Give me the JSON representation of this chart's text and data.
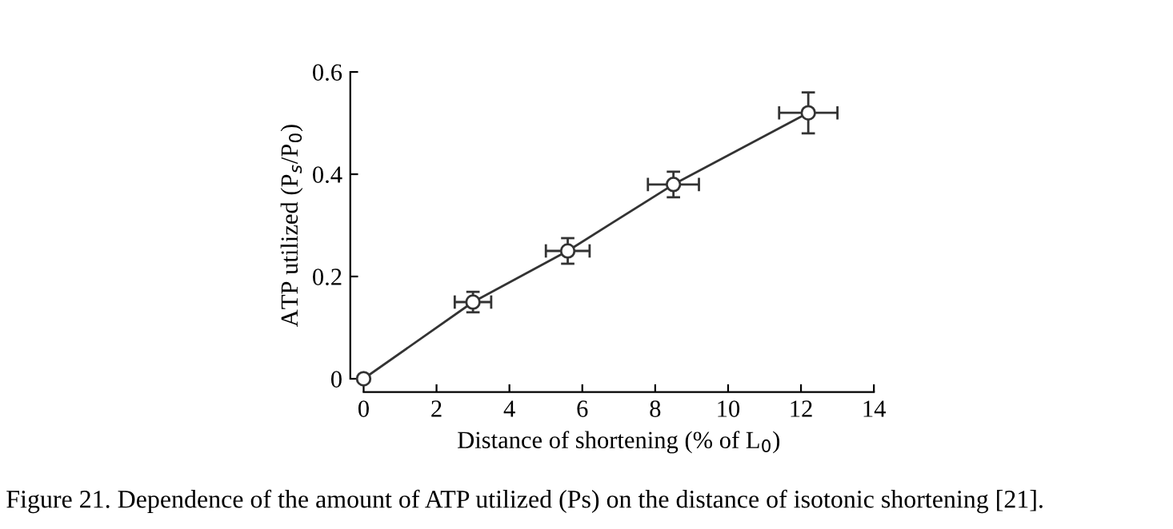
{
  "chart_data": {
    "type": "line",
    "xlabel": "Distance of shortening (% of L$_{0}$)",
    "ylabel": "ATP utilized (P$_{s}$/P$_{0}$)",
    "annotations": [
      "Figure 21. Dependence of the amount of ATP utilized (Ps) on the distance of isotonic shortening [21]."
    ],
    "series": [
      {
        "color": "#333333",
        "x": [
          0,
          3.0,
          5.6,
          8.5,
          12.2
        ],
        "values": [
          0,
          0.15,
          0.25,
          0.38,
          0.52
        ],
        "errors": [
          null,
          0.02,
          0.025,
          0.025,
          0.04
        ],
        "xerrors": [
          null,
          0.5,
          0.6,
          0.7,
          0.8
        ]
      }
    ],
    "marker": "circle",
    "line_style": "solid",
    "xlim": [
      0,
      14
    ],
    "ylim": [
      0,
      0.6
    ],
    "xticks": [
      0,
      2,
      4,
      6,
      8,
      10,
      12,
      14
    ],
    "yticks": [
      0,
      0.2,
      0.4,
      0.6
    ],
    "grid": false,
    "legend": false
  }
}
